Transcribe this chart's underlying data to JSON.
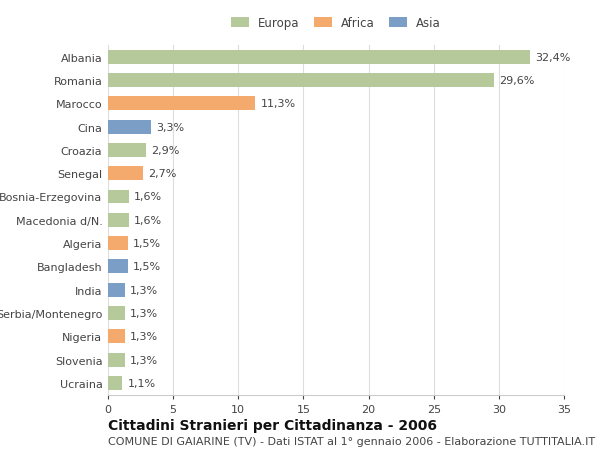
{
  "countries": [
    "Albania",
    "Romania",
    "Marocco",
    "Cina",
    "Croazia",
    "Senegal",
    "Bosnia-Erzegovina",
    "Macedonia d/N.",
    "Algeria",
    "Bangladesh",
    "India",
    "Serbia/Montenegro",
    "Nigeria",
    "Slovenia",
    "Ucraina"
  ],
  "values": [
    32.4,
    29.6,
    11.3,
    3.3,
    2.9,
    2.7,
    1.6,
    1.6,
    1.5,
    1.5,
    1.3,
    1.3,
    1.3,
    1.3,
    1.1
  ],
  "continents": [
    "Europa",
    "Europa",
    "Africa",
    "Asia",
    "Europa",
    "Africa",
    "Europa",
    "Europa",
    "Africa",
    "Asia",
    "Asia",
    "Europa",
    "Africa",
    "Europa",
    "Europa"
  ],
  "colors": {
    "Europa": "#b5c99a",
    "Africa": "#f4a96d",
    "Asia": "#7b9ec7"
  },
  "xlim": [
    0,
    35
  ],
  "xticks": [
    0,
    5,
    10,
    15,
    20,
    25,
    30,
    35
  ],
  "title": "Cittadini Stranieri per Cittadinanza - 2006",
  "subtitle": "COMUNE DI GAIARINE (TV) - Dati ISTAT al 1° gennaio 2006 - Elaborazione TUTTITALIA.IT",
  "bg_color": "#ffffff",
  "plot_bg_color": "#ffffff",
  "grid_color": "#dddddd",
  "title_fontsize": 10,
  "subtitle_fontsize": 8,
  "label_fontsize": 8,
  "value_fontsize": 8,
  "legend_fontsize": 8.5,
  "tick_fontsize": 8
}
